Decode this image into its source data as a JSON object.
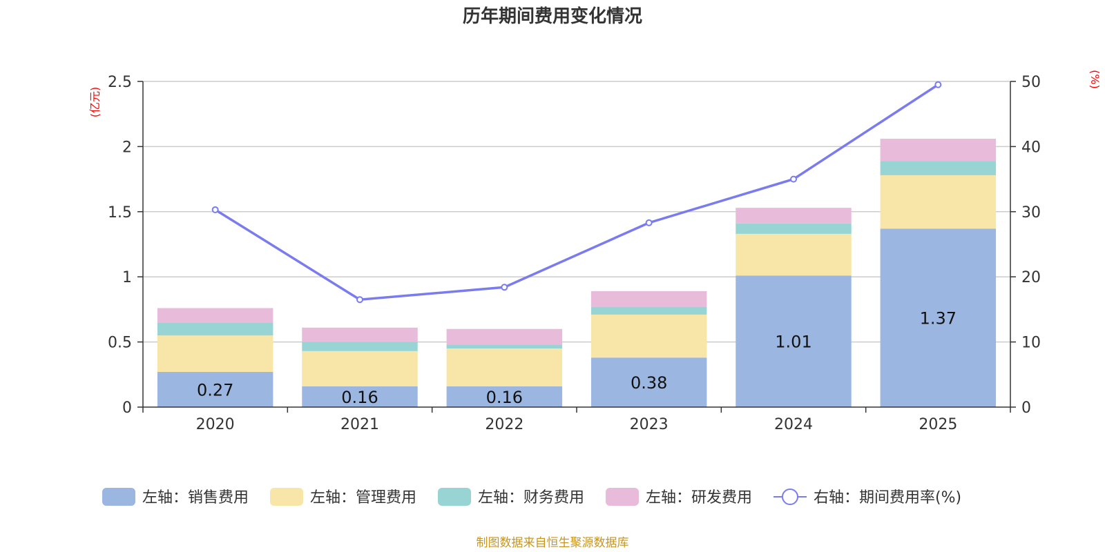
{
  "chart_data": {
    "type": "bar",
    "title": "历年期间费用变化情况",
    "categories": [
      "2020",
      "2021",
      "2022",
      "2023",
      "2024",
      "2025"
    ],
    "series": [
      {
        "name": "左轴：销售费用",
        "kind": "bar",
        "axis": "left",
        "color": "#9bb7e1",
        "values": [
          0.27,
          0.16,
          0.16,
          0.38,
          1.01,
          1.37
        ],
        "show_labels": true
      },
      {
        "name": "左轴：管理费用",
        "kind": "bar",
        "axis": "left",
        "color": "#f7e6a7",
        "values": [
          0.28,
          0.27,
          0.29,
          0.33,
          0.32,
          0.41
        ],
        "show_labels": false
      },
      {
        "name": "左轴：财务费用",
        "kind": "bar",
        "axis": "left",
        "color": "#98d4d3",
        "values": [
          0.1,
          0.07,
          0.03,
          0.06,
          0.08,
          0.11
        ],
        "show_labels": false
      },
      {
        "name": "左轴：研发费用",
        "kind": "bar",
        "axis": "left",
        "color": "#e8bbdb",
        "values": [
          0.11,
          0.11,
          0.12,
          0.12,
          0.12,
          0.17
        ],
        "show_labels": false
      },
      {
        "name": "右轴：期间费用率(%)",
        "kind": "line",
        "axis": "right",
        "color": "#7a7bef",
        "values": [
          30.3,
          16.5,
          18.4,
          28.3,
          35.0,
          49.5
        ]
      }
    ],
    "left_axis": {
      "unit": "(亿元)",
      "ylim": [
        0,
        2.5
      ],
      "ticks": [
        "0",
        "0.5",
        "1",
        "1.5",
        "2",
        "2.5"
      ],
      "tick_values": [
        0,
        0.5,
        1,
        1.5,
        2,
        2.5
      ]
    },
    "right_axis": {
      "unit": "(%)",
      "ylim": [
        0,
        50
      ],
      "ticks": [
        "0",
        "10",
        "20",
        "30",
        "40",
        "50"
      ],
      "tick_values": [
        0,
        10,
        20,
        30,
        40,
        50
      ]
    },
    "grid": true,
    "legend_position": "bottom"
  },
  "source": "制图数据来自恒生聚源数据库"
}
